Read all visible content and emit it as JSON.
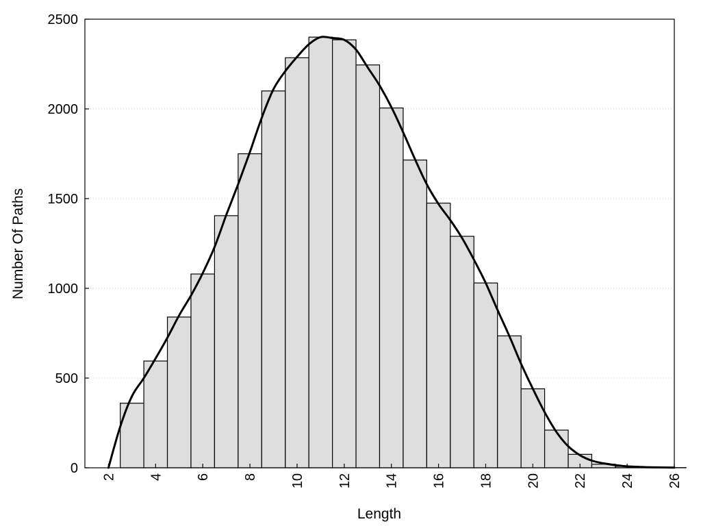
{
  "chart_data": {
    "type": "bar",
    "title": "",
    "xlabel": "Length",
    "ylabel": "Number Of Paths",
    "xlim": [
      1,
      26
    ],
    "ylim": [
      0,
      2500
    ],
    "x_ticks": [
      2,
      4,
      6,
      8,
      10,
      12,
      14,
      16,
      18,
      20,
      22,
      24,
      26
    ],
    "y_ticks": [
      0,
      500,
      1000,
      1500,
      2000,
      2500
    ],
    "grid": "horizontal dotted",
    "legend": "none",
    "categories": [
      2,
      3,
      4,
      5,
      6,
      7,
      8,
      9,
      10,
      11,
      12,
      13,
      14,
      15,
      16,
      17,
      18,
      19,
      20,
      21,
      22,
      23,
      24,
      25,
      26
    ],
    "series": [
      {
        "kind": "bars",
        "values": [
          0,
          360,
          595,
          840,
          1080,
          1405,
          1750,
          2100,
          2285,
          2400,
          2385,
          2245,
          2005,
          1715,
          1475,
          1290,
          1030,
          735,
          440,
          210,
          75,
          20,
          8,
          3,
          1
        ]
      },
      {
        "kind": "smoothed-line",
        "x": [
          2,
          2.5,
          3,
          3.5,
          4,
          4.5,
          5,
          5.5,
          6,
          6.5,
          7,
          7.5,
          8,
          8.5,
          9,
          9.5,
          10,
          10.5,
          11,
          11.5,
          12,
          12.5,
          13,
          13.5,
          14,
          14.5,
          15,
          15.5,
          16,
          16.5,
          17,
          17.5,
          18,
          18.5,
          19,
          19.5,
          20,
          20.5,
          21,
          21.5,
          22,
          22.5,
          23,
          23.5,
          24,
          24.5,
          25,
          25.5,
          26
        ],
        "values": [
          0,
          230,
          400,
          500,
          610,
          725,
          850,
          960,
          1085,
          1230,
          1410,
          1580,
          1760,
          1950,
          2110,
          2210,
          2290,
          2360,
          2400,
          2395,
          2385,
          2330,
          2230,
          2130,
          2010,
          1870,
          1720,
          1580,
          1470,
          1380,
          1280,
          1160,
          1030,
          880,
          735,
          580,
          440,
          310,
          200,
          120,
          70,
          40,
          25,
          15,
          8,
          5,
          3,
          2,
          1
        ]
      }
    ],
    "colors": {
      "bar_fill": "#dedede",
      "bar_stroke": "#000000",
      "line": "#000000",
      "grid": "#cfcfcf"
    }
  }
}
